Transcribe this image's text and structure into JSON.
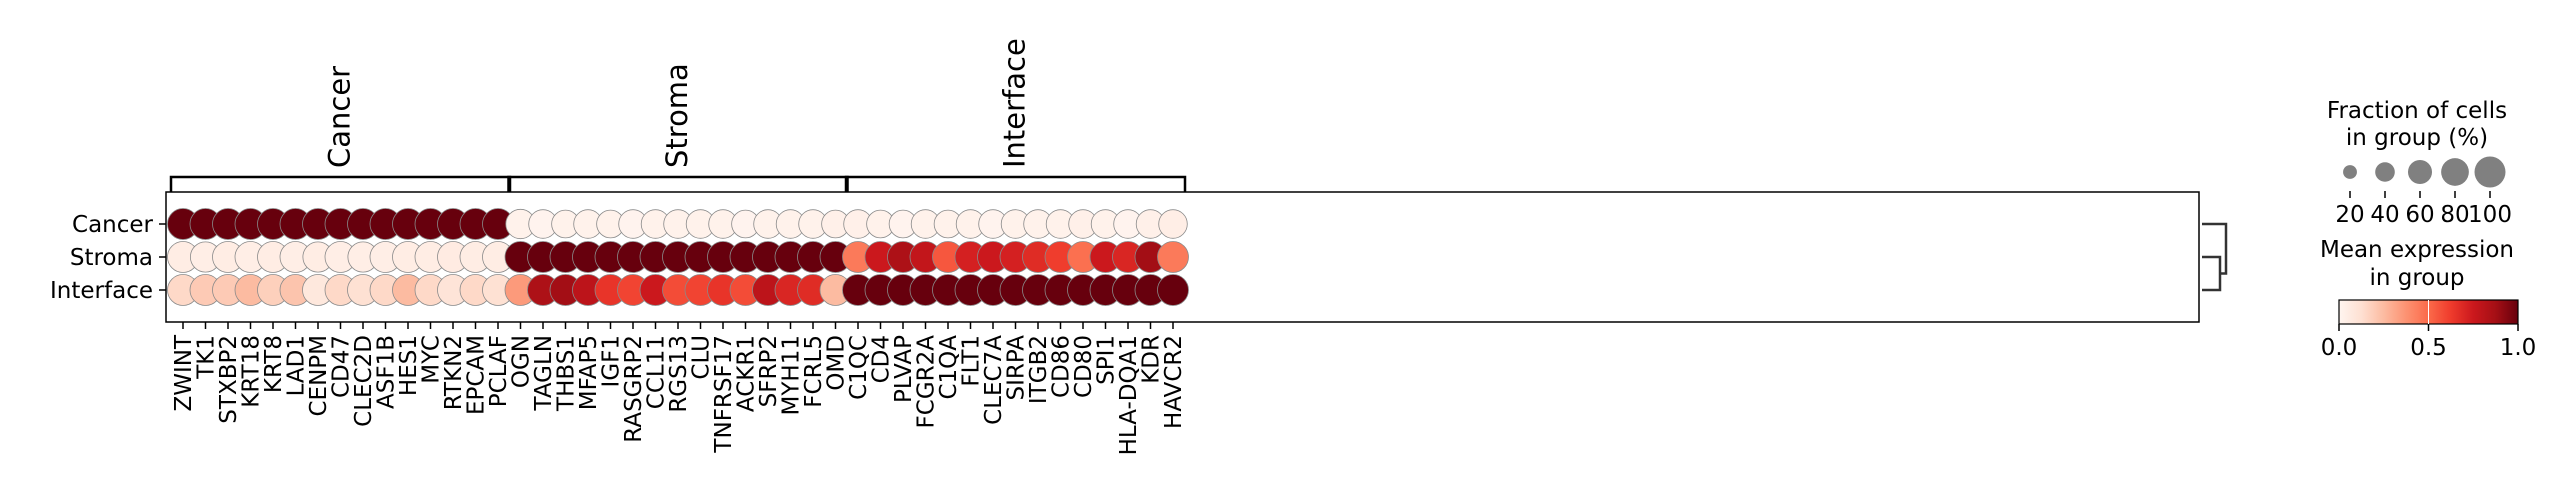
{
  "chart_data": {
    "type": "dotplot",
    "title": "",
    "xlabel": "",
    "ylabel": "",
    "rows": [
      "Cancer",
      "Stroma",
      "Interface"
    ],
    "genes": [
      "ZWINT",
      "TK1",
      "STXBP2",
      "KRT18",
      "KRT8",
      "LAD1",
      "CENPM",
      "CD47",
      "CLEC2D",
      "ASF1B",
      "HES1",
      "MYC",
      "RTKN2",
      "EPCAM",
      "PCLAF",
      "OGN",
      "TAGLN",
      "THBS1",
      "MFAP5",
      "IGF1",
      "RASGRP2",
      "CCL11",
      "RGS13",
      "CLU",
      "TNFRSF17",
      "ACKR1",
      "SFRP2",
      "MYH11",
      "FCRL5",
      "OMD",
      "C1QC",
      "CD4",
      "PLVAP",
      "FCGR2A",
      "C1QA",
      "FLT1",
      "CLEC7A",
      "SIRPA",
      "ITGB2",
      "CD86",
      "CD80",
      "SPI1",
      "HLA-DQA1",
      "KDR",
      "HAVCR2"
    ],
    "groups": [
      {
        "label": "Cancer",
        "start": 0,
        "end": 14
      },
      {
        "label": "Stroma",
        "start": 15,
        "end": 29
      },
      {
        "label": "Interface",
        "start": 30,
        "end": 44
      }
    ],
    "mean_expression": [
      [
        1,
        1,
        1,
        1,
        1,
        1,
        1,
        1,
        1,
        1,
        1,
        1,
        1,
        1,
        1,
        0.02,
        0.01,
        0.02,
        0.02,
        0.02,
        0.01,
        0.02,
        0.02,
        0.02,
        0.02,
        0.01,
        0.02,
        0.02,
        0.02,
        0.03,
        0.03,
        0.02,
        0.01,
        0.02,
        0.02,
        0.02,
        0.01,
        0.02,
        0.02,
        0.02,
        0.03,
        0.02,
        0.01,
        0.03,
        0.04
      ],
      [
        0.05,
        0.04,
        0.05,
        0.04,
        0.05,
        0.04,
        0.05,
        0.04,
        0.04,
        0.04,
        0.05,
        0.05,
        0.06,
        0.05,
        0.05,
        1,
        1,
        1,
        1,
        1,
        1,
        1,
        1,
        1,
        1,
        1,
        1,
        1,
        1,
        1,
        0.45,
        0.75,
        0.85,
        0.78,
        0.55,
        0.72,
        0.75,
        0.72,
        0.68,
        0.62,
        0.48,
        0.75,
        0.7,
        0.88,
        0.45
      ],
      [
        0.15,
        0.2,
        0.2,
        0.25,
        0.18,
        0.22,
        0.08,
        0.15,
        0.12,
        0.15,
        0.25,
        0.15,
        0.1,
        0.15,
        0.12,
        0.35,
        0.85,
        0.88,
        0.8,
        0.65,
        0.6,
        0.75,
        0.58,
        0.6,
        0.65,
        0.58,
        0.8,
        0.7,
        0.68,
        0.25,
        1,
        1,
        1,
        1,
        1,
        1,
        1,
        1,
        1,
        1,
        1,
        1,
        1,
        1,
        1
      ]
    ],
    "fraction_in_group": [
      [
        100,
        100,
        100,
        100,
        100,
        100,
        100,
        100,
        100,
        100,
        100,
        100,
        100,
        100,
        100,
        90,
        85,
        80,
        85,
        80,
        85,
        85,
        85,
        85,
        85,
        80,
        85,
        85,
        85,
        80,
        85,
        80,
        80,
        85,
        80,
        85,
        85,
        85,
        85,
        85,
        85,
        85,
        85,
        85,
        85
      ],
      [
        100,
        95,
        100,
        100,
        100,
        100,
        95,
        100,
        95,
        100,
        100,
        100,
        100,
        100,
        100,
        100,
        100,
        100,
        100,
        100,
        100,
        100,
        100,
        100,
        100,
        100,
        100,
        100,
        100,
        100,
        100,
        100,
        100,
        100,
        100,
        100,
        100,
        100,
        100,
        100,
        100,
        100,
        100,
        100,
        100
      ],
      [
        100,
        100,
        100,
        100,
        100,
        100,
        100,
        100,
        100,
        100,
        100,
        100,
        100,
        100,
        100,
        100,
        100,
        100,
        100,
        100,
        100,
        100,
        100,
        100,
        100,
        100,
        100,
        100,
        100,
        100,
        100,
        100,
        100,
        100,
        100,
        100,
        100,
        100,
        100,
        100,
        100,
        100,
        100,
        100,
        100
      ]
    ],
    "size_legend": {
      "title_line1": "Fraction of cells",
      "title_line2": "in group (%)",
      "values": [
        20,
        40,
        60,
        80,
        100
      ],
      "labels": [
        "20",
        "40",
        "60",
        "80",
        "100"
      ]
    },
    "color_legend": {
      "title_line1": "Mean expression",
      "title_line2": "in group",
      "range": [
        0,
        1
      ],
      "ticks": [
        0,
        0.5,
        1
      ],
      "tick_labels": [
        "0.0",
        "0.5",
        "1.0"
      ],
      "colormap": "Reds"
    },
    "dendrogram": true
  }
}
